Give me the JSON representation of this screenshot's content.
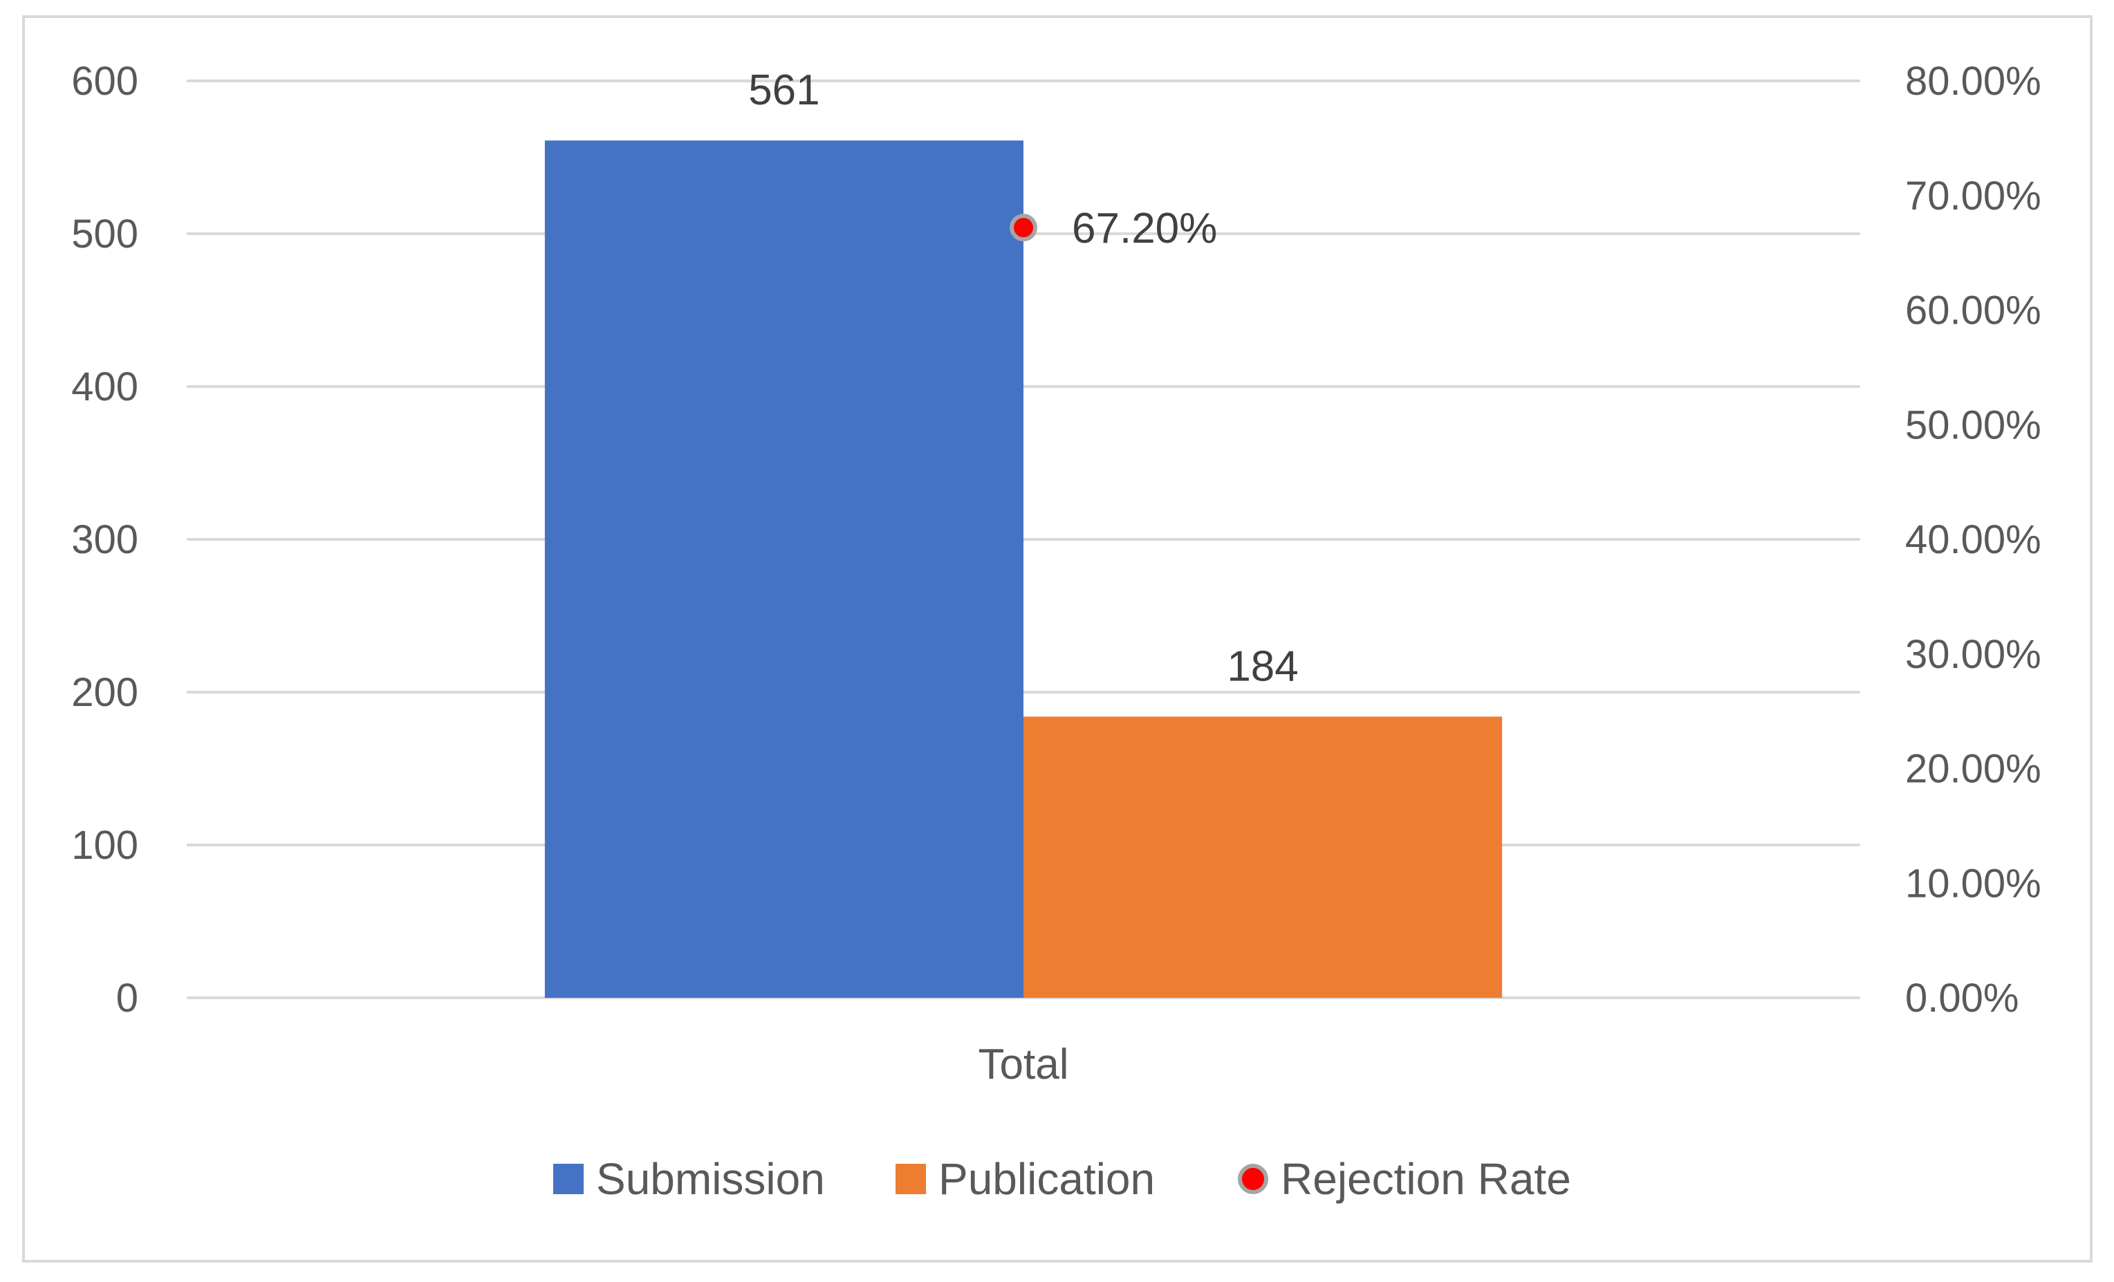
{
  "chart_data": {
    "type": "bar",
    "categories": [
      "Total"
    ],
    "series": [
      {
        "name": "Submission",
        "axis": "left",
        "type": "bar",
        "values": [
          561
        ],
        "color": "#4472C4"
      },
      {
        "name": "Publication",
        "axis": "left",
        "type": "bar",
        "values": [
          184
        ],
        "color": "#ED7D31"
      },
      {
        "name": "Rejection Rate",
        "axis": "right",
        "type": "scatter",
        "values": [
          0.672
        ],
        "color": "#FF0000",
        "border_color": "#A5A5A5"
      }
    ],
    "data_labels": {
      "Submission": [
        "561"
      ],
      "Publication": [
        "184"
      ],
      "Rejection Rate": [
        "67.20%"
      ]
    },
    "y_left": {
      "ylim": [
        0,
        600
      ],
      "ticks": [
        0,
        100,
        200,
        300,
        400,
        500,
        600
      ],
      "tick_labels": [
        "0",
        "100",
        "200",
        "300",
        "400",
        "500",
        "600"
      ]
    },
    "y_right": {
      "ylim": [
        0,
        0.8
      ],
      "ticks": [
        0,
        0.1,
        0.2,
        0.3,
        0.4,
        0.5,
        0.6,
        0.7,
        0.8
      ],
      "tick_labels": [
        "0.00%",
        "10.00%",
        "20.00%",
        "30.00%",
        "40.00%",
        "50.00%",
        "60.00%",
        "70.00%",
        "80.00%"
      ]
    },
    "grid": true,
    "legend": "bottom",
    "legend_entries": [
      "Submission",
      "Publication",
      "Rejection Rate"
    ],
    "title": "",
    "xlabel": "",
    "ylabel": ""
  }
}
